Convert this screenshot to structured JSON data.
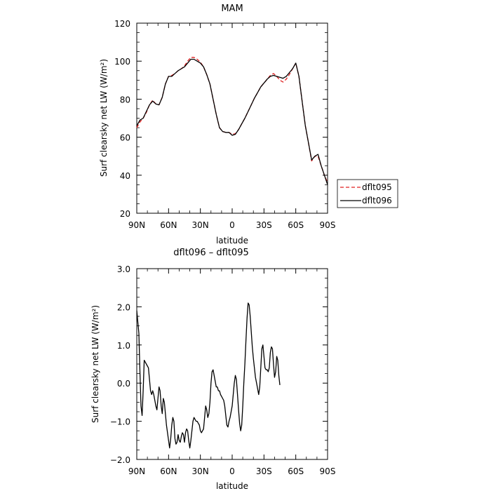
{
  "chart_data": [
    {
      "type": "line",
      "title": "MAM",
      "xlabel": "latitude",
      "ylabel": "Surf clearsky net LW (W/m²)",
      "xlim": [
        90,
        -90
      ],
      "ylim": [
        20,
        120
      ],
      "x_ticks": [
        90,
        60,
        30,
        0,
        -30,
        -60,
        -90
      ],
      "x_tick_labels": [
        "90N",
        "60N",
        "30N",
        "0",
        "30S",
        "60S",
        "90S"
      ],
      "y_ticks": [
        20,
        40,
        60,
        80,
        100,
        120
      ],
      "y_tick_labels": [
        "20",
        "40",
        "60",
        "80",
        "100",
        "120"
      ],
      "grid": false,
      "legend_position": "right-bottom-outside",
      "series": [
        {
          "name": "dflt095",
          "color": "#e02020",
          "dash": "dashed",
          "points": [
            [
              90,
              65
            ],
            [
              87,
              68
            ],
            [
              84,
              70
            ],
            [
              81,
              73
            ],
            [
              78,
              77
            ],
            [
              75,
              79.5
            ],
            [
              72,
              77.5
            ],
            [
              69,
              77
            ],
            [
              66,
              81
            ],
            [
              63,
              88
            ],
            [
              60,
              92
            ],
            [
              57,
              92.5
            ],
            [
              54,
              93.5
            ],
            [
              51,
              95
            ],
            [
              48,
              96
            ],
            [
              45,
              97.5
            ],
            [
              42,
              100
            ],
            [
              39,
              102
            ],
            [
              36,
              102
            ],
            [
              33,
              101
            ],
            [
              30,
              99.5
            ],
            [
              27,
              97
            ],
            [
              24,
              93
            ],
            [
              21,
              88
            ],
            [
              18,
              80
            ],
            [
              15,
              72
            ],
            [
              12,
              65
            ],
            [
              9,
              63
            ],
            [
              6,
              62.5
            ],
            [
              3,
              62.5
            ],
            [
              0,
              61.5
            ],
            [
              -3,
              61.8
            ],
            [
              -6,
              64
            ],
            [
              -9,
              67
            ],
            [
              -12,
              70
            ],
            [
              -15,
              73.5
            ],
            [
              -18,
              77
            ],
            [
              -21,
              80.5
            ],
            [
              -24,
              83.5
            ],
            [
              -27,
              86.5
            ],
            [
              -30,
              88.5
            ],
            [
              -33,
              90.5
            ],
            [
              -36,
              92.5
            ],
            [
              -39,
              93.5
            ],
            [
              -42,
              92
            ],
            [
              -45,
              90
            ],
            [
              -48,
              89
            ],
            [
              -51,
              90.5
            ],
            [
              -54,
              93
            ],
            [
              -57,
              96
            ],
            [
              -60,
              99
            ],
            [
              -63,
              92
            ],
            [
              -66,
              79
            ],
            [
              -69,
              66
            ],
            [
              -72,
              57
            ],
            [
              -75,
              47.5
            ],
            [
              -78,
              50
            ],
            [
              -81,
              50
            ],
            [
              -84,
              45
            ],
            [
              -87,
              40
            ],
            [
              -90,
              36
            ]
          ]
        },
        {
          "name": "dflt096",
          "color": "#000000",
          "dash": "solid",
          "points": [
            [
              90,
              66
            ],
            [
              87,
              69
            ],
            [
              84,
              70
            ],
            [
              81,
              73.5
            ],
            [
              78,
              77
            ],
            [
              75,
              79
            ],
            [
              72,
              77.5
            ],
            [
              69,
              77
            ],
            [
              66,
              81
            ],
            [
              63,
              88
            ],
            [
              60,
              92
            ],
            [
              57,
              92
            ],
            [
              54,
              93.5
            ],
            [
              51,
              95
            ],
            [
              48,
              96
            ],
            [
              45,
              97
            ],
            [
              42,
              99
            ],
            [
              39,
              101
            ],
            [
              36,
              101
            ],
            [
              33,
              100
            ],
            [
              30,
              99
            ],
            [
              27,
              97
            ],
            [
              24,
              93
            ],
            [
              21,
              88
            ],
            [
              18,
              80
            ],
            [
              15,
              72
            ],
            [
              12,
              65
            ],
            [
              9,
              63
            ],
            [
              6,
              62.5
            ],
            [
              3,
              62.5
            ],
            [
              0,
              61
            ],
            [
              -3,
              61.5
            ],
            [
              -6,
              64
            ],
            [
              -9,
              67
            ],
            [
              -12,
              70
            ],
            [
              -15,
              73.5
            ],
            [
              -18,
              77
            ],
            [
              -21,
              80.5
            ],
            [
              -24,
              83.5
            ],
            [
              -27,
              86.5
            ],
            [
              -30,
              88.5
            ],
            [
              -33,
              90.5
            ],
            [
              -36,
              92
            ],
            [
              -39,
              92.5
            ],
            [
              -42,
              92
            ],
            [
              -45,
              91.5
            ],
            [
              -48,
              91
            ],
            [
              -51,
              92
            ],
            [
              -54,
              94
            ],
            [
              -57,
              96
            ],
            [
              -60,
              99
            ],
            [
              -63,
              92
            ],
            [
              -66,
              79
            ],
            [
              -69,
              66
            ],
            [
              -72,
              57
            ],
            [
              -75,
              48
            ],
            [
              -78,
              50
            ],
            [
              -81,
              51
            ],
            [
              -84,
              45
            ],
            [
              -87,
              40
            ],
            [
              -90,
              35
            ]
          ]
        }
      ]
    },
    {
      "type": "line",
      "title": "dflt096 – dflt095",
      "xlabel": "latitude",
      "ylabel": "Surf clearsky net LW (W/m²)",
      "xlim": [
        90,
        -90
      ],
      "ylim": [
        -2,
        3
      ],
      "x_ticks": [
        90,
        60,
        30,
        0,
        -30,
        -60,
        -90
      ],
      "x_tick_labels": [
        "90N",
        "60N",
        "30N",
        "0",
        "30S",
        "60S",
        "90S"
      ],
      "y_ticks": [
        -2,
        -1,
        0,
        1,
        2,
        3
      ],
      "y_tick_labels": [
        "−2.0",
        "−1.0",
        "0.0",
        "1.0",
        "2.0",
        "3.0"
      ],
      "grid": false,
      "series": [
        {
          "color": "#000000",
          "dash": "solid",
          "points": [
            [
              90,
              1.9
            ],
            [
              89,
              1.6
            ],
            [
              88,
              1.3
            ],
            [
              87,
              0.3
            ],
            [
              86,
              -0.6
            ],
            [
              85,
              -0.85
            ],
            [
              84,
              -0.2
            ],
            [
              83,
              0.6
            ],
            [
              81,
              0.5
            ],
            [
              79,
              0.4
            ],
            [
              77,
              -0.2
            ],
            [
              76,
              -0.3
            ],
            [
              75,
              -0.2
            ],
            [
              74,
              -0.3
            ],
            [
              72,
              -0.6
            ],
            [
              71,
              -0.7
            ],
            [
              70,
              -0.4
            ],
            [
              69,
              -0.1
            ],
            [
              68,
              -0.2
            ],
            [
              67,
              -0.6
            ],
            [
              66,
              -0.8
            ],
            [
              65,
              -0.4
            ],
            [
              64,
              -0.5
            ],
            [
              63,
              -0.8
            ],
            [
              62,
              -1.1
            ],
            [
              60,
              -1.5
            ],
            [
              59,
              -1.7
            ],
            [
              58,
              -1.45
            ],
            [
              57,
              -1.1
            ],
            [
              56,
              -0.9
            ],
            [
              55,
              -1.0
            ],
            [
              54,
              -1.45
            ],
            [
              53,
              -1.6
            ],
            [
              52,
              -1.55
            ],
            [
              51,
              -1.35
            ],
            [
              50,
              -1.5
            ],
            [
              49,
              -1.55
            ],
            [
              48,
              -1.4
            ],
            [
              47,
              -1.3
            ],
            [
              46,
              -1.35
            ],
            [
              45,
              -1.55
            ],
            [
              44,
              -1.3
            ],
            [
              43,
              -1.2
            ],
            [
              42,
              -1.25
            ],
            [
              41,
              -1.5
            ],
            [
              40,
              -1.7
            ],
            [
              39,
              -1.5
            ],
            [
              38,
              -1.25
            ],
            [
              37,
              -1.0
            ],
            [
              36,
              -0.9
            ],
            [
              35,
              -0.95
            ],
            [
              34,
              -1.0
            ],
            [
              33,
              -1.0
            ],
            [
              32,
              -1.05
            ],
            [
              31,
              -1.1
            ],
            [
              30,
              -1.25
            ],
            [
              29,
              -1.3
            ],
            [
              28,
              -1.25
            ],
            [
              27,
              -1.2
            ],
            [
              26,
              -0.9
            ],
            [
              25,
              -0.6
            ],
            [
              24,
              -0.7
            ],
            [
              23,
              -0.9
            ],
            [
              22,
              -0.8
            ],
            [
              21,
              -0.5
            ],
            [
              20,
              0.0
            ],
            [
              19,
              0.3
            ],
            [
              18,
              0.35
            ],
            [
              17,
              0.2
            ],
            [
              16,
              0.05
            ],
            [
              15,
              -0.1
            ],
            [
              14,
              -0.1
            ],
            [
              13,
              -0.2
            ],
            [
              12,
              -0.2
            ],
            [
              11,
              -0.3
            ],
            [
              10,
              -0.35
            ],
            [
              9,
              -0.4
            ],
            [
              8,
              -0.45
            ],
            [
              7,
              -0.6
            ],
            [
              6,
              -0.85
            ],
            [
              5,
              -1.1
            ],
            [
              4,
              -1.15
            ],
            [
              3,
              -1.0
            ],
            [
              2,
              -0.9
            ],
            [
              1,
              -0.75
            ],
            [
              0,
              -0.6
            ],
            [
              -1,
              -0.3
            ],
            [
              -2,
              0.0
            ],
            [
              -3,
              0.2
            ],
            [
              -4,
              0.1
            ],
            [
              -5,
              -0.3
            ],
            [
              -6,
              -0.7
            ],
            [
              -7,
              -1.05
            ],
            [
              -8,
              -1.25
            ],
            [
              -9,
              -1.1
            ],
            [
              -10,
              -0.6
            ],
            [
              -11,
              0.0
            ],
            [
              -12,
              0.5
            ],
            [
              -13,
              1.1
            ],
            [
              -14,
              1.7
            ],
            [
              -15,
              2.1
            ],
            [
              -16,
              2.05
            ],
            [
              -17,
              1.75
            ],
            [
              -18,
              1.35
            ],
            [
              -19,
              0.95
            ],
            [
              -20,
              0.65
            ],
            [
              -21,
              0.4
            ],
            [
              -22,
              0.15
            ],
            [
              -23,
              0.0
            ],
            [
              -24,
              -0.15
            ],
            [
              -25,
              -0.3
            ],
            [
              -26,
              -0.1
            ],
            [
              -27,
              0.4
            ],
            [
              -28,
              0.9
            ],
            [
              -29,
              1.0
            ],
            [
              -30,
              0.7
            ],
            [
              -31,
              0.4
            ],
            [
              -32,
              0.35
            ],
            [
              -33,
              0.35
            ],
            [
              -34,
              0.3
            ],
            [
              -35,
              0.4
            ],
            [
              -36,
              0.8
            ],
            [
              -37,
              0.95
            ],
            [
              -38,
              0.9
            ],
            [
              -39,
              0.5
            ],
            [
              -40,
              0.15
            ],
            [
              -41,
              0.3
            ],
            [
              -42,
              0.7
            ],
            [
              -43,
              0.6
            ],
            [
              -44,
              0.2
            ],
            [
              -45,
              -0.05
            ]
          ]
        }
      ]
    }
  ]
}
